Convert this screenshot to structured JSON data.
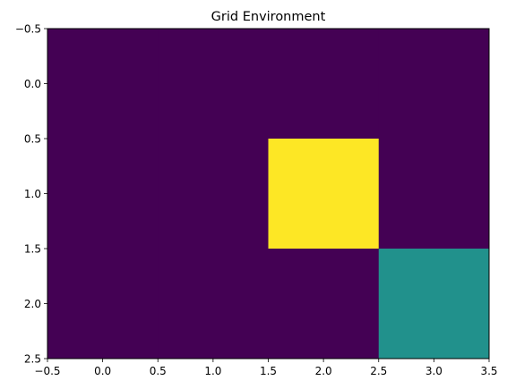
{
  "chart_data": {
    "type": "heatmap",
    "title": "Grid Environment",
    "xlabel": "",
    "ylabel": "",
    "xlim": [
      -0.5,
      3.5
    ],
    "ylim": [
      2.5,
      -0.5
    ],
    "y_axis_inverted": true,
    "grid": false,
    "colormap": "viridis",
    "color_levels": {
      "0": "#440154",
      "1": "#21918c",
      "2": "#fde725"
    },
    "values": [
      [
        0,
        0,
        0,
        0
      ],
      [
        0,
        0,
        2,
        0
      ],
      [
        0,
        0,
        0,
        1
      ]
    ],
    "x_ticks": [
      -0.5,
      0.0,
      0.5,
      1.0,
      1.5,
      2.0,
      2.5,
      3.0,
      3.5
    ],
    "x_tick_labels": [
      "−0.5",
      "0.0",
      "0.5",
      "1.0",
      "1.5",
      "2.0",
      "2.5",
      "3.0",
      "3.5"
    ],
    "y_ticks": [
      -0.5,
      0.0,
      0.5,
      1.0,
      1.5,
      2.0,
      2.5
    ],
    "y_tick_labels": [
      "−0.5",
      "0.0",
      "0.5",
      "1.0",
      "1.5",
      "2.0",
      "2.5"
    ]
  }
}
